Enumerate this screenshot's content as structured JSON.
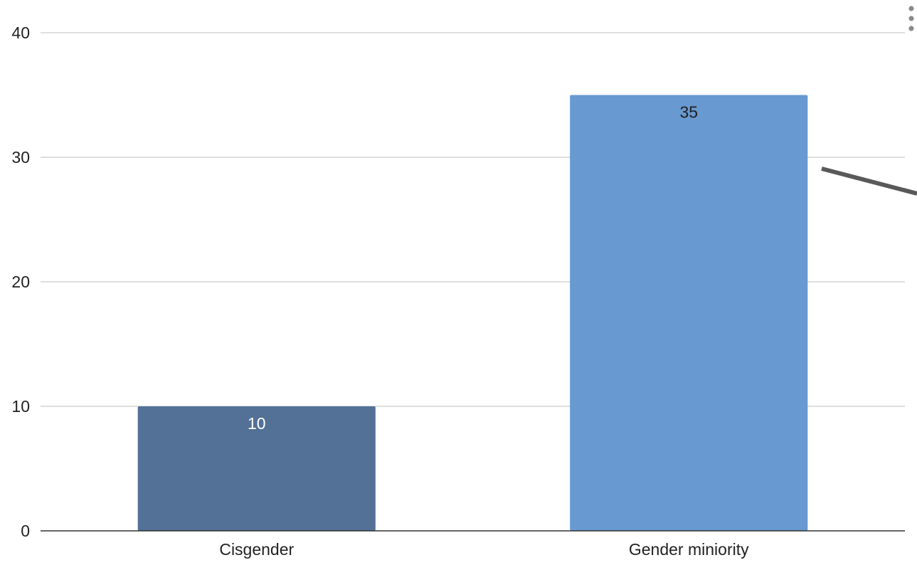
{
  "chart_data": {
    "type": "bar",
    "title": "",
    "xlabel": "",
    "ylabel": "",
    "categories": [
      "Cisgender",
      "Gender miniority"
    ],
    "values": [
      10,
      35
    ],
    "data_labels": [
      "10",
      "35"
    ],
    "bar_colors": [
      "#537196",
      "#6899d0"
    ],
    "data_label_colors": [
      "#ffffff",
      "#1f1f1f"
    ],
    "ylim": [
      0,
      40
    ],
    "y_ticks": [
      0,
      10,
      20,
      30,
      40
    ],
    "y_tick_labels": [
      "0",
      "10",
      "20",
      "30",
      "40"
    ],
    "grid": true,
    "legend": "none"
  },
  "menu": {
    "icon": "more-vert-icon"
  }
}
